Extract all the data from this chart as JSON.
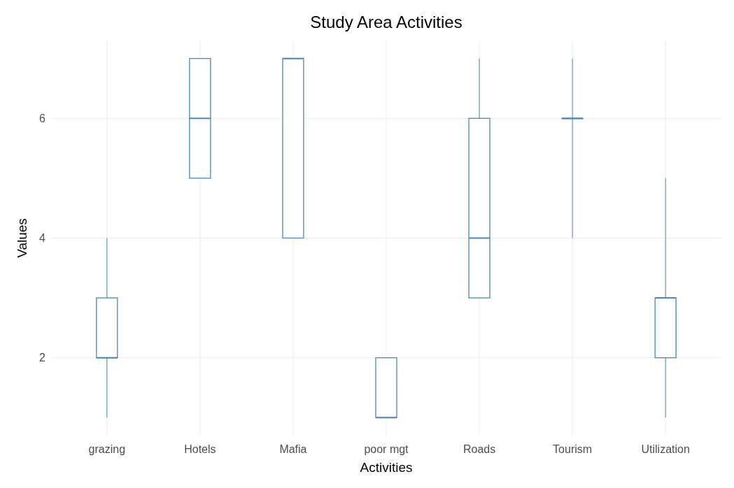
{
  "chart_data": {
    "type": "box",
    "title": "Study Area Activities",
    "xlabel": "Activities",
    "ylabel": "Values",
    "categories": [
      "grazing",
      "Hotels",
      "Mafia",
      "poor mgt",
      "Roads",
      "Tourism",
      "Utilization"
    ],
    "color": "#4a86c0",
    "boxes": [
      {
        "low": 1,
        "q1": 2,
        "median": 2,
        "q3": 3,
        "high": 4
      },
      {
        "low": 5,
        "q1": 5,
        "median": 6,
        "q3": 7,
        "high": 7
      },
      {
        "low": 4,
        "q1": 4,
        "median": 7,
        "q3": 7,
        "high": 7
      },
      {
        "low": 1,
        "q1": 1,
        "median": 1,
        "q3": 2,
        "high": 2
      },
      {
        "low": 3,
        "q1": 3,
        "median": 4,
        "q3": 6,
        "high": 7
      },
      {
        "low": 4,
        "q1": 6,
        "median": 6,
        "q3": 6,
        "high": 7
      },
      {
        "low": 1,
        "q1": 2,
        "median": 3,
        "q3": 3,
        "high": 5
      }
    ],
    "ylim": [
      0.7,
      7.3
    ],
    "yticks": [
      2,
      4,
      6
    ],
    "grid": true
  }
}
